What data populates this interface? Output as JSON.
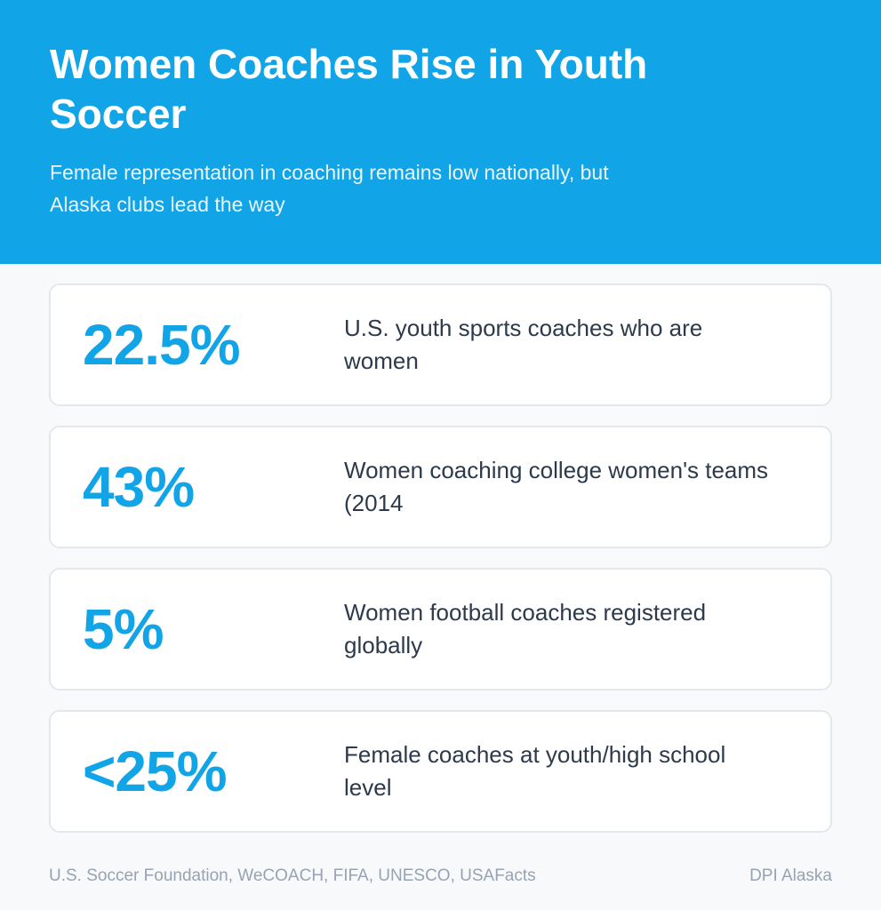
{
  "header": {
    "title": "Women Coaches Rise in Youth Soccer",
    "subtitle": "Female representation in coaching remains low nationally, but Alaska clubs lead the way"
  },
  "stats": [
    {
      "value": "22.5%",
      "label": "U.S. youth sports coaches who are women"
    },
    {
      "value": "43%",
      "label": "Women coaching college women's teams (2014"
    },
    {
      "value": "5%",
      "label": "Women football coaches registered globally"
    },
    {
      "value": "<25%",
      "label": "Female coaches at youth/high school level"
    }
  ],
  "footer": {
    "sources": "U.S. Soccer Foundation, WeCOACH, FIFA, UNESCO, USAFacts",
    "credit": "DPI Alaska"
  },
  "colors": {
    "accent": "#11a4e6",
    "text": "#2c3a4b",
    "muted": "#97a3b2",
    "background": "#f8f9fb"
  }
}
